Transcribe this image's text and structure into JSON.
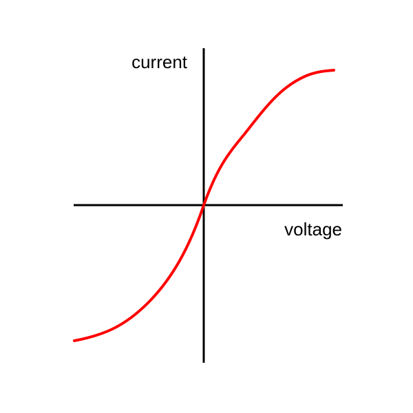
{
  "axes": {
    "y_label": "current",
    "x_label": "voltage"
  }
}
